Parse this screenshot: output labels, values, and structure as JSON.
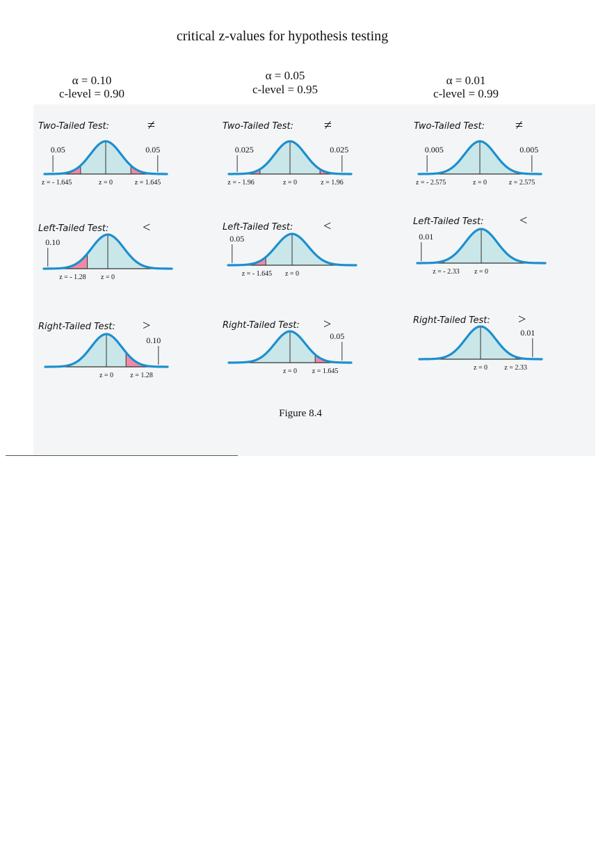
{
  "title": "critical z-values for hypothesis testing",
  "caption": "Figure 8.4",
  "colors": {
    "curve": "#1b8fd0",
    "body_fill": "#c9e6e8",
    "tail_fill": "#ef8aa6",
    "panel_bg": "#f4f5f7"
  },
  "columns": [
    {
      "alpha": "α = 0.10",
      "clevel": "c-level = 0.90",
      "tests": [
        {
          "kind": "two",
          "label": "Two-Tailed Test:",
          "symbol": "≠",
          "left_area": "0.05",
          "right_area": "0.05",
          "z_left": "z = - 1.645",
          "z_mid": "z = 0",
          "z_right": "z = 1.645",
          "crit": 1.645
        },
        {
          "kind": "left",
          "label": "Left-Tailed Test:",
          "symbol": "<",
          "left_area": "0.10",
          "z_left": "z = - 1.28",
          "z_mid": "z = 0",
          "crit": 1.28
        },
        {
          "kind": "right",
          "label": "Right-Tailed Test:",
          "symbol": ">",
          "right_area": "0.10",
          "z_mid": "z = 0",
          "z_right": "z = 1.28",
          "crit": 1.28
        }
      ]
    },
    {
      "alpha": "α = 0.05",
      "clevel": "c-level = 0.95",
      "tests": [
        {
          "kind": "two",
          "label": "Two-Tailed Test:",
          "symbol": "≠",
          "left_area": "0.025",
          "right_area": "0.025",
          "z_left": "z = - 1.96",
          "z_mid": "z = 0",
          "z_right": "z = 1.96",
          "crit": 1.96
        },
        {
          "kind": "left",
          "label": "Left-Tailed Test:",
          "symbol": "<",
          "left_area": "0.05",
          "z_left": "z = - 1.645",
          "z_mid": "z = 0",
          "crit": 1.645
        },
        {
          "kind": "right",
          "label": "Right-Tailed Test:",
          "symbol": ">",
          "right_area": "0.05",
          "z_mid": "z = 0",
          "z_right": "z = 1.645",
          "crit": 1.645
        }
      ]
    },
    {
      "alpha": "α = 0.01",
      "clevel": "c-level = 0.99",
      "tests": [
        {
          "kind": "two",
          "label": "Two-Tailed Test:",
          "symbol": "≠",
          "left_area": "0.005",
          "right_area": "0.005",
          "z_left": "z = - 2.575",
          "z_mid": "z = 0",
          "z_right": "z = 2.575",
          "crit": 2.575
        },
        {
          "kind": "left",
          "label": "Left-Tailed Test:",
          "symbol": "<",
          "left_area": "0.01",
          "z_left": "z = - 2.33",
          "z_mid": "z = 0",
          "crit": 2.33
        },
        {
          "kind": "right",
          "label": "Right-Tailed Test:",
          "symbol": ">",
          "right_area": "0.01",
          "z_mid": "z = 0",
          "z_right": "z = 2.33",
          "crit": 2.33
        }
      ]
    }
  ]
}
